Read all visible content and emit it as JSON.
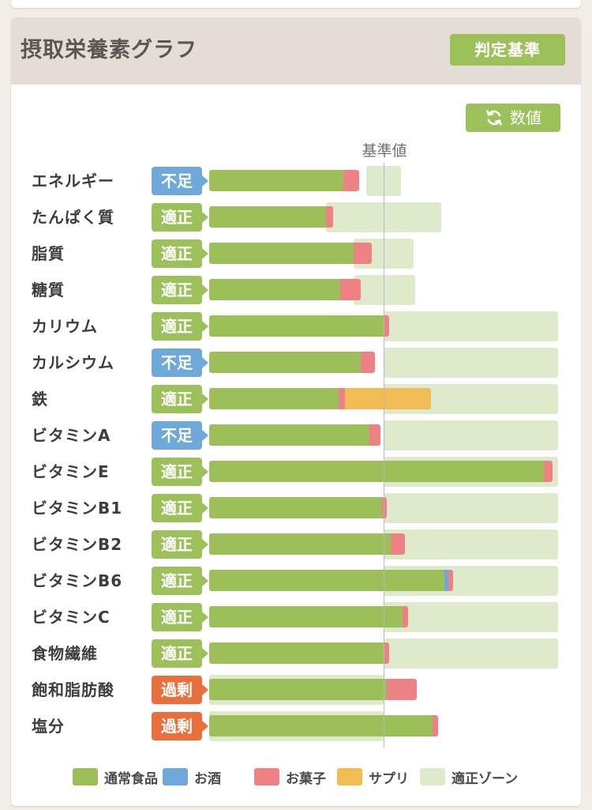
{
  "card": {
    "title": "摂取栄養素グラフ",
    "criteria_button": "判定基準",
    "value_button": "数値",
    "reference_label": "基準値"
  },
  "colors": {
    "food": "#9cbf5a",
    "alcohol": "#6ea9da",
    "snack": "#ee8183",
    "supplement": "#f1bc54",
    "zone": "#dfe9cc",
    "status_ok": "#9cc05a",
    "status_low": "#6ea9da",
    "status_high": "#e96f3c"
  },
  "legend": [
    {
      "key": "food",
      "label": "通常食品"
    },
    {
      "key": "alcohol",
      "label": "お酒"
    },
    {
      "key": "snack",
      "label": "お菓子"
    },
    {
      "key": "supplement",
      "label": "サプリ"
    },
    {
      "key": "zone",
      "label": "適正ゾーン"
    }
  ],
  "chart_data": {
    "type": "bar",
    "orientation": "horizontal",
    "stacked": true,
    "unit": "% of reference value (基準値 = 100)",
    "categories": [
      "エネルギー",
      "たんぱく質",
      "脂質",
      "糖質",
      "カリウム",
      "カルシウム",
      "鉄",
      "ビタミンA",
      "ビタミンE",
      "ビタミンB1",
      "ビタミンB2",
      "ビタミンB6",
      "ビタミンC",
      "食物繊維",
      "飽和脂肪酸",
      "塩分"
    ],
    "status": [
      "不足",
      "適正",
      "適正",
      "適正",
      "適正",
      "不足",
      "適正",
      "不足",
      "適正",
      "適正",
      "適正",
      "適正",
      "適正",
      "適正",
      "過剰",
      "過剰"
    ],
    "series": [
      {
        "name": "通常食品",
        "values": [
          77,
          67,
          83,
          75,
          100,
          87,
          74,
          92,
          192,
          99,
          104,
          135,
          111,
          100,
          102,
          128
        ]
      },
      {
        "name": "お酒",
        "values": [
          0,
          0,
          0,
          0,
          0,
          0,
          0,
          0,
          0,
          0,
          0,
          2,
          0,
          0,
          0,
          0
        ]
      },
      {
        "name": "お菓子",
        "values": [
          9,
          4,
          10,
          12,
          3,
          8,
          4,
          6,
          5,
          3,
          8,
          3,
          3,
          3,
          17,
          3
        ]
      },
      {
        "name": "サプリ",
        "values": [
          0,
          0,
          0,
          0,
          0,
          0,
          49,
          0,
          0,
          0,
          0,
          0,
          0,
          0,
          0,
          0
        ]
      }
    ],
    "zones": [
      [
        90,
        110
      ],
      [
        67,
        133
      ],
      [
        83,
        117
      ],
      [
        83,
        118
      ],
      [
        100,
        200
      ],
      [
        100,
        200
      ],
      [
        100,
        200
      ],
      [
        100,
        200
      ],
      [
        100,
        200
      ],
      [
        100,
        200
      ],
      [
        100,
        200
      ],
      [
        100,
        200
      ],
      [
        100,
        200
      ],
      [
        100,
        200
      ],
      [
        0,
        100
      ],
      [
        0,
        100
      ]
    ]
  }
}
